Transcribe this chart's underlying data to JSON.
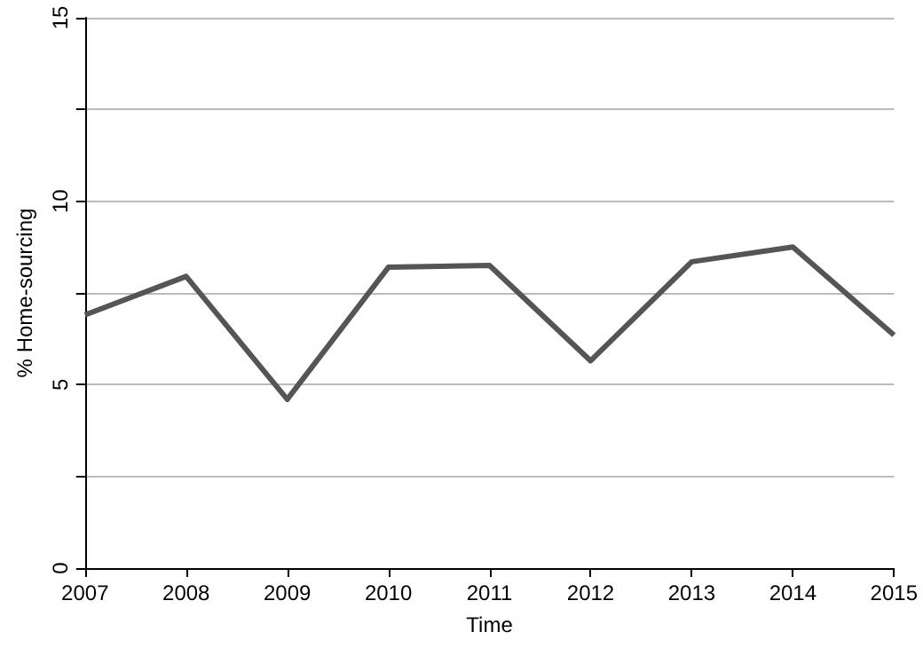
{
  "chart_data": {
    "type": "line",
    "xlabel": "Time",
    "ylabel": "% Home-sourcing",
    "categories": [
      "2007",
      "2008",
      "2009",
      "2010",
      "2011",
      "2012",
      "2013",
      "2014",
      "2015"
    ],
    "series": [
      {
        "color": "#555555",
        "values": [
          6.9,
          7.95,
          4.6,
          8.2,
          8.25,
          5.65,
          8.35,
          8.75,
          6.35
        ]
      }
    ],
    "ylim": [
      0,
      15
    ],
    "yticks": [
      0,
      {
        "value": 2.5,
        "label": null
      },
      5,
      {
        "value": 7.5,
        "label": null
      },
      10,
      {
        "value": 12.5,
        "label": null
      },
      15
    ],
    "grid": "y",
    "marker": "none",
    "line_style": "solid"
  }
}
